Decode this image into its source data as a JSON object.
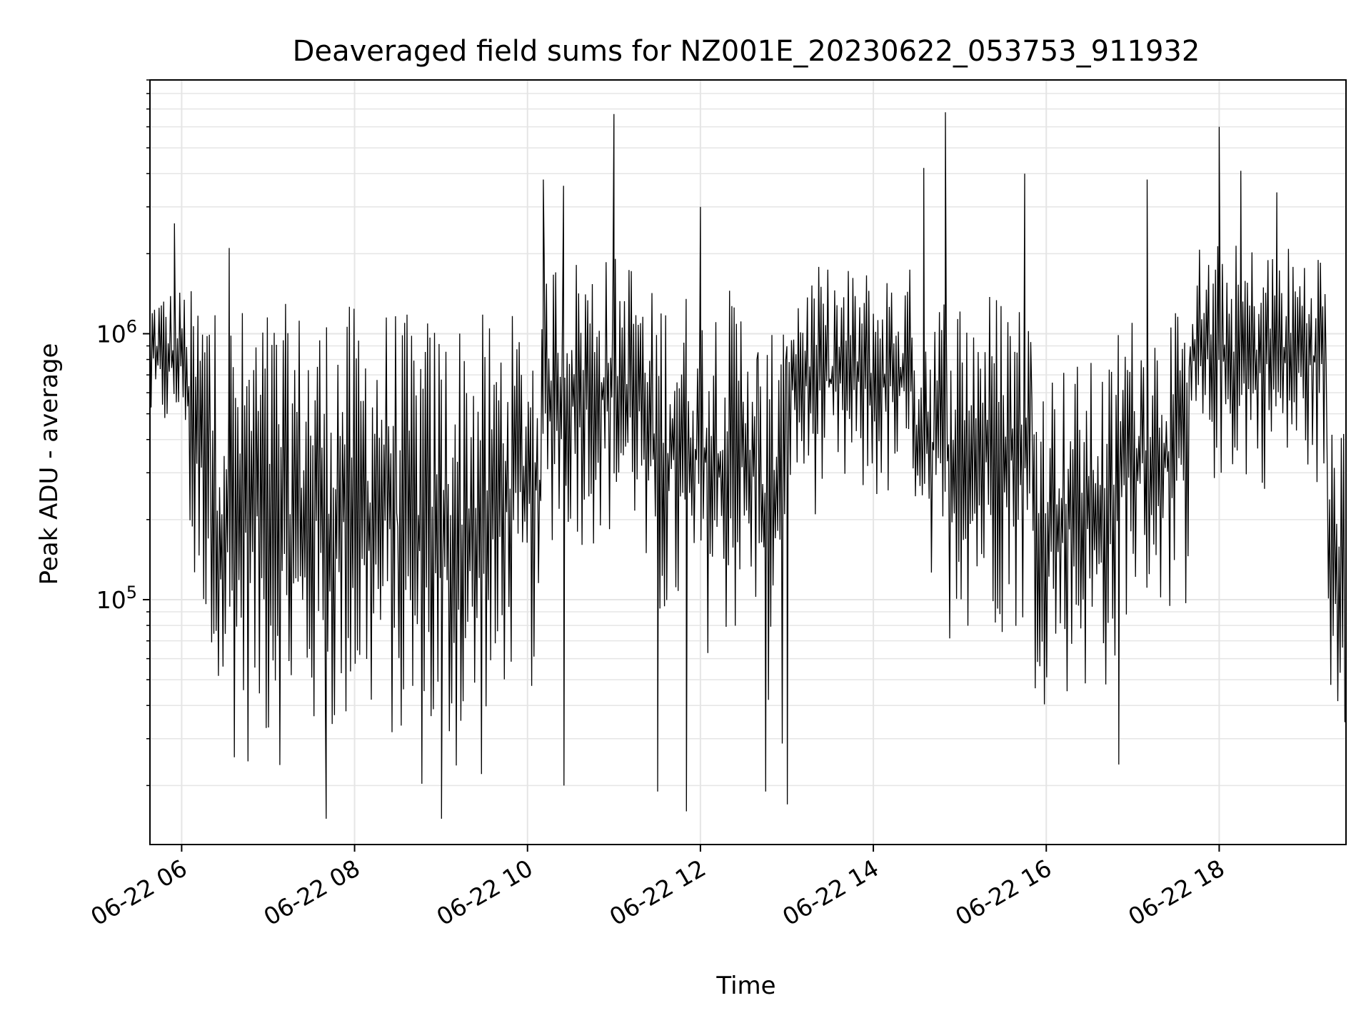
{
  "chart_data": {
    "type": "line",
    "title": "Deaveraged field sums for NZ001E_20230622_053753_911932",
    "xlabel": "Time",
    "ylabel": "Peak ADU - average",
    "yscale": "log",
    "ylim": [
      12000,
      9000000
    ],
    "xlim": [
      "2023-06-22 05:38",
      "2023-06-22 19:28"
    ],
    "grid": true,
    "colors": {
      "line": "#000000",
      "grid": "#e5e5e5",
      "frame": "#000000"
    },
    "x_ticks": [
      {
        "value": "2023-06-22 06:00",
        "label": "06-22 06"
      },
      {
        "value": "2023-06-22 08:00",
        "label": "06-22 08"
      },
      {
        "value": "2023-06-22 10:00",
        "label": "06-22 10"
      },
      {
        "value": "2023-06-22 12:00",
        "label": "06-22 12"
      },
      {
        "value": "2023-06-22 14:00",
        "label": "06-22 14"
      },
      {
        "value": "2023-06-22 16:00",
        "label": "06-22 16"
      },
      {
        "value": "2023-06-22 18:00",
        "label": "06-22 18"
      }
    ],
    "y_ticks": [
      {
        "value": 100000,
        "base": "10",
        "exp": "5"
      },
      {
        "value": 1000000,
        "base": "10",
        "exp": "6"
      }
    ],
    "series": [
      {
        "segments": [
          {
            "start": "2023-06-22 05:38",
            "end": "2023-06-22 06:05",
            "low": 380000,
            "high": 1500000
          },
          {
            "start": "2023-06-22 06:05",
            "end": "2023-06-22 06:20",
            "low": 70000,
            "high": 1500000
          },
          {
            "start": "2023-06-22 06:20",
            "end": "2023-06-22 07:50",
            "low": 22000,
            "high": 1300000
          },
          {
            "start": "2023-06-22 07:50",
            "end": "2023-06-22 08:30",
            "low": 25000,
            "high": 1300000
          },
          {
            "start": "2023-06-22 08:30",
            "end": "2023-06-22 09:40",
            "low": 17000,
            "high": 1200000
          },
          {
            "start": "2023-06-22 09:40",
            "end": "2023-06-22 10:10",
            "low": 40000,
            "high": 1200000
          },
          {
            "start": "2023-06-22 10:10",
            "end": "2023-06-22 11:20",
            "low": 150000,
            "high": 2000000
          },
          {
            "start": "2023-06-22 11:20",
            "end": "2023-06-22 12:40",
            "low": 60000,
            "high": 1500000
          },
          {
            "start": "2023-06-22 12:40",
            "end": "2023-06-22 13:00",
            "low": 25000,
            "high": 1200000
          },
          {
            "start": "2023-06-22 13:00",
            "end": "2023-06-22 14:30",
            "low": 200000,
            "high": 1800000
          },
          {
            "start": "2023-06-22 14:30",
            "end": "2023-06-22 15:50",
            "low": 70000,
            "high": 1500000
          },
          {
            "start": "2023-06-22 15:50",
            "end": "2023-06-22 16:50",
            "low": 40000,
            "high": 800000
          },
          {
            "start": "2023-06-22 16:50",
            "end": "2023-06-22 17:40",
            "low": 80000,
            "high": 1200000
          },
          {
            "start": "2023-06-22 17:40",
            "end": "2023-06-22 19:15",
            "low": 250000,
            "high": 2200000
          },
          {
            "start": "2023-06-22 19:15",
            "end": "2023-06-22 19:28",
            "low": 30000,
            "high": 500000
          }
        ],
        "spikes": [
          {
            "x": "2023-06-22 05:55",
            "y": 2600000
          },
          {
            "x": "2023-06-22 06:33",
            "y": 2100000
          },
          {
            "x": "2023-06-22 10:11",
            "y": 3800000
          },
          {
            "x": "2023-06-22 10:25",
            "y": 3600000
          },
          {
            "x": "2023-06-22 11:00",
            "y": 6700000
          },
          {
            "x": "2023-06-22 12:00",
            "y": 3000000
          },
          {
            "x": "2023-06-22 14:35",
            "y": 4200000
          },
          {
            "x": "2023-06-22 14:50",
            "y": 6800000
          },
          {
            "x": "2023-06-22 15:45",
            "y": 4000000
          },
          {
            "x": "2023-06-22 17:10",
            "y": 3800000
          },
          {
            "x": "2023-06-22 18:00",
            "y": 6000000
          },
          {
            "x": "2023-06-22 18:15",
            "y": 4100000
          },
          {
            "x": "2023-06-22 18:40",
            "y": 3400000
          }
        ],
        "dips": [
          {
            "x": "2023-06-22 07:40",
            "y": 15000
          },
          {
            "x": "2023-06-22 09:00",
            "y": 15000
          },
          {
            "x": "2023-06-22 10:25",
            "y": 20000
          },
          {
            "x": "2023-06-22 11:30",
            "y": 19000
          },
          {
            "x": "2023-06-22 11:50",
            "y": 16000
          },
          {
            "x": "2023-06-22 12:45",
            "y": 19000
          },
          {
            "x": "2023-06-22 13:00",
            "y": 17000
          },
          {
            "x": "2023-06-22 16:50",
            "y": 24000
          }
        ]
      }
    ]
  }
}
